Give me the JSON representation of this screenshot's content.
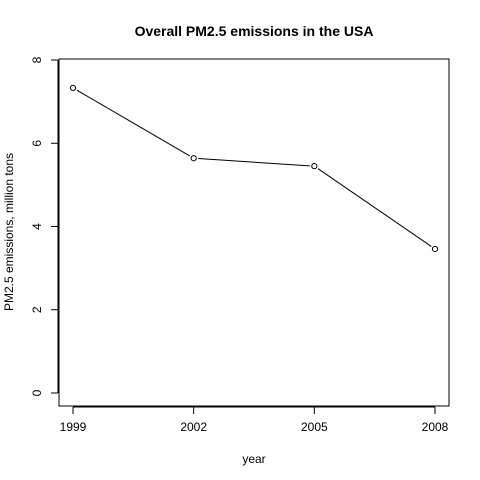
{
  "chart_data": {
    "type": "line",
    "title": "Overall PM2.5 emissions in the USA",
    "xlabel": "year",
    "ylabel": "PM2.5 emissions, million tons",
    "x": [
      1999,
      2002,
      2005,
      2008
    ],
    "values": [
      7.33,
      5.64,
      5.45,
      3.46
    ],
    "xlim": [
      1999,
      2008
    ],
    "ylim": [
      0,
      8
    ],
    "xticks": [
      "1999",
      "2002",
      "2005",
      "2008"
    ],
    "yticks": [
      "0",
      "2",
      "4",
      "6",
      "8"
    ],
    "grid": false,
    "legend": "none",
    "line_color": "#000000",
    "marker": "open-circle"
  }
}
